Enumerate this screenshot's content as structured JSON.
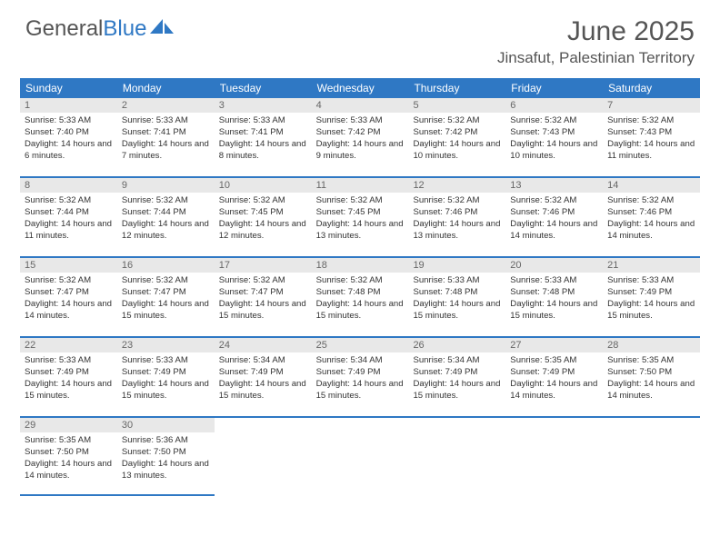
{
  "logo": {
    "text_gray": "General",
    "text_blue": "Blue"
  },
  "title": "June 2025",
  "location": "Jinsafut, Palestinian Territory",
  "colors": {
    "header_bg": "#2f78c4",
    "header_text": "#ffffff",
    "daynum_bg": "#e8e8e8",
    "body_text": "#333333",
    "rule": "#2f78c4"
  },
  "day_headers": [
    "Sunday",
    "Monday",
    "Tuesday",
    "Wednesday",
    "Thursday",
    "Friday",
    "Saturday"
  ],
  "weeks": [
    [
      {
        "n": "1",
        "sr": "5:33 AM",
        "ss": "7:40 PM",
        "dl": "14 hours and 6 minutes."
      },
      {
        "n": "2",
        "sr": "5:33 AM",
        "ss": "7:41 PM",
        "dl": "14 hours and 7 minutes."
      },
      {
        "n": "3",
        "sr": "5:33 AM",
        "ss": "7:41 PM",
        "dl": "14 hours and 8 minutes."
      },
      {
        "n": "4",
        "sr": "5:33 AM",
        "ss": "7:42 PM",
        "dl": "14 hours and 9 minutes."
      },
      {
        "n": "5",
        "sr": "5:32 AM",
        "ss": "7:42 PM",
        "dl": "14 hours and 10 minutes."
      },
      {
        "n": "6",
        "sr": "5:32 AM",
        "ss": "7:43 PM",
        "dl": "14 hours and 10 minutes."
      },
      {
        "n": "7",
        "sr": "5:32 AM",
        "ss": "7:43 PM",
        "dl": "14 hours and 11 minutes."
      }
    ],
    [
      {
        "n": "8",
        "sr": "5:32 AM",
        "ss": "7:44 PM",
        "dl": "14 hours and 11 minutes."
      },
      {
        "n": "9",
        "sr": "5:32 AM",
        "ss": "7:44 PM",
        "dl": "14 hours and 12 minutes."
      },
      {
        "n": "10",
        "sr": "5:32 AM",
        "ss": "7:45 PM",
        "dl": "14 hours and 12 minutes."
      },
      {
        "n": "11",
        "sr": "5:32 AM",
        "ss": "7:45 PM",
        "dl": "14 hours and 13 minutes."
      },
      {
        "n": "12",
        "sr": "5:32 AM",
        "ss": "7:46 PM",
        "dl": "14 hours and 13 minutes."
      },
      {
        "n": "13",
        "sr": "5:32 AM",
        "ss": "7:46 PM",
        "dl": "14 hours and 14 minutes."
      },
      {
        "n": "14",
        "sr": "5:32 AM",
        "ss": "7:46 PM",
        "dl": "14 hours and 14 minutes."
      }
    ],
    [
      {
        "n": "15",
        "sr": "5:32 AM",
        "ss": "7:47 PM",
        "dl": "14 hours and 14 minutes."
      },
      {
        "n": "16",
        "sr": "5:32 AM",
        "ss": "7:47 PM",
        "dl": "14 hours and 15 minutes."
      },
      {
        "n": "17",
        "sr": "5:32 AM",
        "ss": "7:47 PM",
        "dl": "14 hours and 15 minutes."
      },
      {
        "n": "18",
        "sr": "5:32 AM",
        "ss": "7:48 PM",
        "dl": "14 hours and 15 minutes."
      },
      {
        "n": "19",
        "sr": "5:33 AM",
        "ss": "7:48 PM",
        "dl": "14 hours and 15 minutes."
      },
      {
        "n": "20",
        "sr": "5:33 AM",
        "ss": "7:48 PM",
        "dl": "14 hours and 15 minutes."
      },
      {
        "n": "21",
        "sr": "5:33 AM",
        "ss": "7:49 PM",
        "dl": "14 hours and 15 minutes."
      }
    ],
    [
      {
        "n": "22",
        "sr": "5:33 AM",
        "ss": "7:49 PM",
        "dl": "14 hours and 15 minutes."
      },
      {
        "n": "23",
        "sr": "5:33 AM",
        "ss": "7:49 PM",
        "dl": "14 hours and 15 minutes."
      },
      {
        "n": "24",
        "sr": "5:34 AM",
        "ss": "7:49 PM",
        "dl": "14 hours and 15 minutes."
      },
      {
        "n": "25",
        "sr": "5:34 AM",
        "ss": "7:49 PM",
        "dl": "14 hours and 15 minutes."
      },
      {
        "n": "26",
        "sr": "5:34 AM",
        "ss": "7:49 PM",
        "dl": "14 hours and 15 minutes."
      },
      {
        "n": "27",
        "sr": "5:35 AM",
        "ss": "7:49 PM",
        "dl": "14 hours and 14 minutes."
      },
      {
        "n": "28",
        "sr": "5:35 AM",
        "ss": "7:50 PM",
        "dl": "14 hours and 14 minutes."
      }
    ],
    [
      {
        "n": "29",
        "sr": "5:35 AM",
        "ss": "7:50 PM",
        "dl": "14 hours and 14 minutes."
      },
      {
        "n": "30",
        "sr": "5:36 AM",
        "ss": "7:50 PM",
        "dl": "14 hours and 13 minutes."
      },
      null,
      null,
      null,
      null,
      null
    ]
  ],
  "labels": {
    "sunrise": "Sunrise:",
    "sunset": "Sunset:",
    "daylight": "Daylight:"
  }
}
